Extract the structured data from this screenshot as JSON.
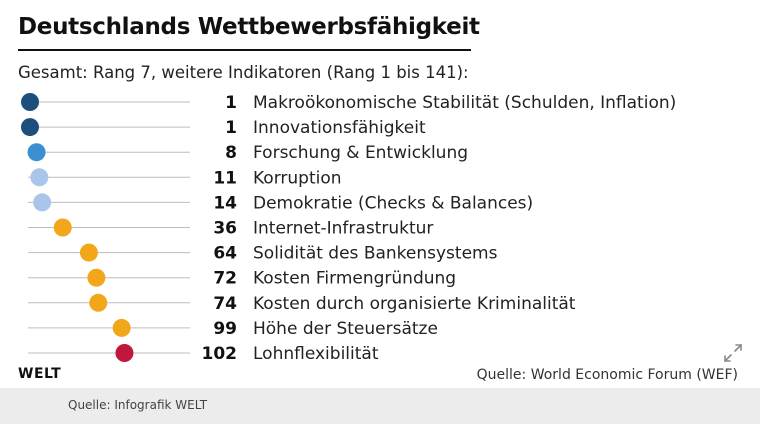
{
  "header": {
    "title": "Deutschlands Wettbewerbsfähigkeit",
    "subtitle": "Gesamt: Rang 7, weitere Indikatoren (Rang 1 bis 141):"
  },
  "brand": "WELT",
  "source": "Quelle: World Economic Forum (WEF)",
  "footer": {
    "credit": "Quelle: Infografik WELT"
  },
  "icons": {
    "expand": "expand-icon"
  },
  "chart_data": {
    "type": "scatter",
    "title": "Deutschlands Wettbewerbsfähigkeit",
    "subtitle": "Gesamt: Rang 7, weitere Indikatoren (Rang 1 bis 141):",
    "xlim": [
      1,
      141
    ],
    "grid": false,
    "legend": "none",
    "colors": {
      "top": "#1d4f7c",
      "high": "#3a8fd0",
      "mid_high": "#a9c6ea",
      "middle": "#f2a71b",
      "low": "#c0183d"
    },
    "items": [
      {
        "label": "Makroökonomische Stabilität (Schulden, Inflation)",
        "rank": 1,
        "color": "#1d4f7c"
      },
      {
        "label": "Innovationsfähigkeit",
        "rank": 1,
        "color": "#1d4f7c"
      },
      {
        "label": "Forschung & Entwicklung",
        "rank": 8,
        "color": "#3a8fd0"
      },
      {
        "label": "Korruption",
        "rank": 11,
        "color": "#a9c6ea"
      },
      {
        "label": "Demokratie (Checks & Balances)",
        "rank": 14,
        "color": "#a9c6ea"
      },
      {
        "label": "Internet-Infrastruktur",
        "rank": 36,
        "color": "#f2a71b"
      },
      {
        "label": "Solidität des Bankensystems",
        "rank": 64,
        "color": "#f2a71b"
      },
      {
        "label": "Kosten Firmengründung",
        "rank": 72,
        "color": "#f2a71b"
      },
      {
        "label": "Kosten durch organisierte Kriminalität",
        "rank": 74,
        "color": "#f2a71b"
      },
      {
        "label": "Höhe der Steuersätze",
        "rank": 99,
        "color": "#f2a71b"
      },
      {
        "label": "Lohnflexibilität",
        "rank": 102,
        "color": "#c0183d"
      }
    ]
  }
}
